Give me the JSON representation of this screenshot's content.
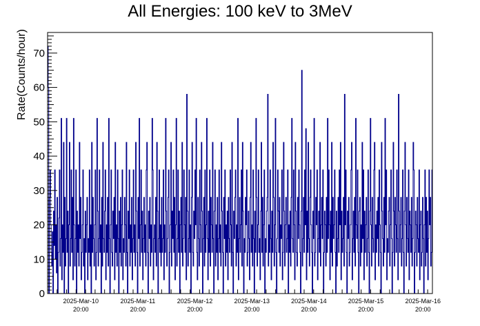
{
  "chart_data": {
    "type": "line",
    "title": "All Energies:  100 keV to 3MeV",
    "xlabel": "",
    "ylabel": "Rate(Counts/hour)",
    "ylim": [
      0,
      76
    ],
    "yticks": [
      0,
      10,
      20,
      30,
      40,
      50,
      60,
      70
    ],
    "x_tick_labels": [
      {
        "date": "2025-Mar-10",
        "time": "20:00"
      },
      {
        "date": "2025-Mar-11",
        "time": "20:00"
      },
      {
        "date": "2025-Mar-12",
        "time": "20:00"
      },
      {
        "date": "2025-Mar-13",
        "time": "20:00"
      },
      {
        "date": "2025-Mar-14",
        "time": "20:00"
      },
      {
        "date": "2025-Mar-15",
        "time": "20:00"
      },
      {
        "date": "2025-Mar-16",
        "time": "20:00"
      }
    ],
    "xlim": [
      "2025-03-10 06:00",
      "2025-03-17 00:00"
    ],
    "step_minutes": 20,
    "grid": false,
    "line_color": "#00008b",
    "series": [
      {
        "values": [
          72,
          60,
          0,
          28,
          36,
          20,
          12,
          8,
          18,
          0,
          24,
          14,
          36,
          10,
          20,
          6,
          28,
          0,
          12,
          22,
          36,
          8,
          16,
          51,
          4,
          20,
          12,
          44,
          0,
          28,
          8,
          16,
          51,
          12,
          24,
          0,
          20,
          44,
          8,
          16,
          36,
          12,
          28,
          4,
          51,
          20,
          8,
          16,
          36,
          0,
          24,
          12,
          20,
          8,
          44,
          16,
          28,
          4,
          12,
          20,
          36,
          8,
          16,
          0,
          24,
          12,
          20,
          28,
          4,
          16,
          12,
          36,
          8,
          20,
          0,
          44,
          12,
          28,
          16,
          8,
          20,
          36,
          4,
          12,
          51,
          24,
          8,
          16,
          36,
          12,
          20,
          0,
          28,
          8,
          44,
          16,
          12,
          24,
          36,
          4,
          20,
          12,
          28,
          8,
          51,
          16,
          0,
          20,
          36,
          12,
          8,
          24,
          16,
          28,
          4,
          44,
          12,
          20,
          8,
          36,
          16,
          0,
          24,
          12,
          28,
          8,
          20,
          36,
          4,
          16,
          12,
          28,
          20,
          8,
          44,
          12,
          0,
          24,
          16,
          36,
          8,
          20,
          12,
          28,
          4,
          16,
          36,
          12,
          20,
          8,
          44,
          24,
          12,
          0,
          28,
          16,
          51,
          8,
          20,
          36,
          12,
          24,
          4,
          16,
          28,
          12,
          20,
          8,
          36,
          44,
          12,
          0,
          24,
          16,
          28,
          8,
          20,
          12,
          51,
          36,
          4,
          16,
          20,
          12,
          28,
          8,
          44,
          24,
          0,
          16,
          36,
          12,
          20,
          8,
          28,
          12,
          16,
          36,
          4,
          20,
          12,
          51,
          24,
          8,
          16,
          28,
          36,
          0,
          12,
          20,
          44,
          8,
          24,
          16,
          36,
          12,
          28,
          4,
          20,
          51,
          8,
          16,
          36,
          12,
          24,
          0,
          20,
          28,
          12,
          44,
          8,
          16,
          36,
          20,
          12,
          28,
          4,
          58,
          24,
          8,
          16,
          36,
          12,
          20,
          0,
          28,
          44,
          12,
          8,
          24,
          16,
          36,
          20,
          51,
          12,
          4,
          28,
          16,
          8,
          36,
          20,
          12,
          44,
          24,
          0,
          16,
          28,
          8,
          36,
          12,
          20,
          51,
          16,
          4,
          24,
          12,
          36,
          8,
          28,
          20,
          12,
          44,
          16,
          0,
          24,
          36,
          8,
          20,
          12,
          28,
          4,
          16,
          36,
          12,
          20,
          8,
          44,
          24,
          12,
          0,
          28,
          16,
          36,
          8,
          20,
          12,
          24,
          4,
          28,
          16,
          12,
          36,
          20,
          8,
          44,
          12,
          0,
          24,
          16,
          28,
          36,
          8,
          20,
          12,
          51,
          4,
          16,
          28,
          12,
          20,
          36,
          8,
          44,
          24,
          0,
          16,
          12,
          28,
          20,
          36,
          8,
          12,
          24,
          16,
          4,
          28,
          44,
          12,
          20,
          8,
          36,
          16,
          0,
          24,
          12,
          51,
          28,
          8,
          20,
          36,
          12,
          16,
          4,
          24,
          44,
          12,
          28,
          8,
          20,
          36,
          0,
          16,
          12,
          24,
          28,
          58,
          8,
          20,
          12,
          36,
          16,
          4,
          24,
          12,
          44,
          28,
          8,
          20,
          51,
          12,
          0,
          16,
          36,
          24,
          12,
          28,
          8,
          20,
          16,
          36,
          4,
          12,
          44,
          24,
          8,
          20,
          28,
          12,
          16,
          36,
          0,
          20,
          12,
          24,
          8,
          28,
          51,
          16,
          12,
          36,
          20,
          4,
          44,
          24,
          12,
          8,
          28,
          16,
          36,
          20,
          12,
          0,
          24,
          65,
          8,
          16,
          28,
          12,
          36,
          20,
          48,
          4,
          24,
          12,
          44,
          16,
          8,
          28,
          36,
          20,
          12,
          0,
          24,
          16,
          51,
          8,
          12,
          28,
          20,
          36,
          4,
          16,
          24,
          12,
          44,
          8,
          20,
          28,
          16,
          36,
          0,
          12,
          24,
          20,
          8,
          28,
          12,
          51,
          16,
          36,
          20,
          4,
          24,
          12,
          44,
          8,
          28,
          16,
          20,
          36,
          12,
          0,
          24,
          8,
          16,
          28,
          12,
          36,
          20,
          44,
          4,
          24,
          12,
          16,
          28,
          8,
          58,
          20,
          36,
          12,
          0,
          24,
          16,
          28,
          8,
          12,
          20,
          36,
          44,
          4,
          16,
          24,
          12,
          28,
          8,
          51,
          20,
          16,
          36,
          12,
          0,
          24,
          28,
          8,
          20,
          12,
          44,
          16,
          36,
          4,
          24,
          12,
          20,
          28,
          8,
          16,
          36,
          12,
          0,
          24,
          51,
          20,
          8,
          28,
          16,
          12,
          36,
          44,
          4,
          20,
          12,
          24,
          16,
          28,
          8,
          36,
          20,
          12,
          0,
          44,
          24,
          16,
          8,
          28,
          12,
          51,
          20,
          36,
          4,
          16,
          12,
          24,
          28,
          8,
          20,
          36,
          16,
          0,
          12,
          44,
          24,
          8,
          28,
          20,
          12,
          36,
          16,
          4,
          58,
          24,
          12,
          20,
          28,
          8,
          16,
          36,
          12,
          0,
          24,
          44,
          20,
          8,
          28,
          16,
          12,
          36,
          4,
          24,
          20,
          12,
          28,
          8,
          16,
          44,
          36,
          0,
          12,
          24,
          20,
          8,
          28,
          16,
          12,
          36,
          4,
          20,
          24,
          8,
          12,
          28,
          16,
          0,
          20,
          36,
          8,
          28,
          12,
          24,
          4,
          16,
          36,
          20,
          28,
          8,
          12,
          36
        ]
      }
    ]
  }
}
